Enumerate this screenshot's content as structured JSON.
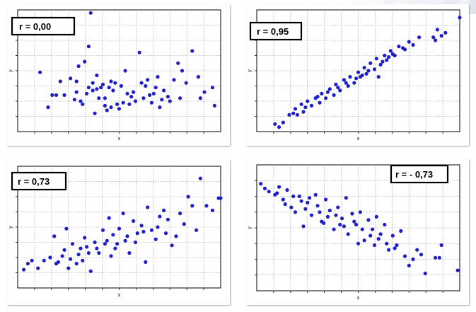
{
  "colors": {
    "marker": "#1f1fc8",
    "background": "#ffffff",
    "frame": "#000000"
  },
  "chart_data": [
    {
      "type": "scatter",
      "annotation": "r = 0,00",
      "xlabel": "x",
      "ylabel": "y",
      "xlim": [
        0,
        10
      ],
      "ylim": [
        0,
        8
      ],
      "grid": true,
      "series": [
        {
          "values": [
            [
              1.1,
              3.9
            ],
            [
              1.5,
              1.6
            ],
            [
              1.7,
              2.4
            ],
            [
              1.9,
              2.4
            ],
            [
              2.1,
              3.3
            ],
            [
              2.6,
              3.5
            ],
            [
              2.9,
              3.3
            ],
            [
              3.0,
              4.3
            ],
            [
              3.1,
              2.0
            ],
            [
              3.3,
              4.6
            ],
            [
              3.5,
              5.6
            ],
            [
              3.6,
              7.8
            ],
            [
              3.7,
              2.7
            ],
            [
              3.8,
              1.2
            ],
            [
              3.9,
              3.7
            ],
            [
              4.0,
              2.2
            ],
            [
              4.3,
              1.7
            ],
            [
              4.4,
              1.4
            ],
            [
              4.6,
              1.6
            ],
            [
              4.9,
              1.8
            ],
            [
              5.1,
              3.0
            ],
            [
              5.3,
              4.0
            ],
            [
              5.4,
              2.5
            ],
            [
              5.7,
              2.6
            ],
            [
              6.0,
              5.2
            ],
            [
              6.3,
              3.0
            ],
            [
              6.5,
              2.4
            ],
            [
              6.7,
              2.5
            ],
            [
              6.9,
              3.6
            ],
            [
              7.1,
              2.1
            ],
            [
              7.4,
              2.3
            ],
            [
              7.9,
              4.5
            ],
            [
              8.1,
              4.0
            ],
            [
              8.3,
              3.2
            ],
            [
              8.6,
              5.3
            ],
            [
              8.9,
              3.6
            ],
            [
              9.2,
              2.6
            ],
            [
              9.6,
              2.9
            ],
            [
              9.7,
              1.7
            ],
            [
              2.3,
              2.4
            ],
            [
              2.8,
              2.1
            ],
            [
              3.2,
              1.8
            ],
            [
              3.4,
              2.5
            ],
            [
              3.5,
              2.9
            ],
            [
              3.9,
              2.8
            ],
            [
              4.1,
              2.9
            ],
            [
              4.2,
              3.1
            ],
            [
              4.5,
              2.9
            ],
            [
              4.7,
              2.7
            ],
            [
              4.8,
              3.2
            ],
            [
              5.0,
              1.5
            ],
            [
              5.2,
              1.9
            ],
            [
              5.5,
              1.8
            ],
            [
              5.8,
              2.0
            ],
            [
              6.1,
              3.2
            ],
            [
              6.2,
              2.2
            ],
            [
              6.4,
              3.4
            ],
            [
              6.8,
              2.9
            ],
            [
              7.0,
              1.6
            ],
            [
              7.2,
              2.7
            ],
            [
              7.5,
              2.0
            ],
            [
              7.7,
              3.4
            ],
            [
              8.0,
              2.2
            ],
            [
              9.0,
              2.2
            ],
            [
              4.6,
              3.3
            ],
            [
              5.6,
              2.3
            ],
            [
              2.9,
              2.6
            ],
            [
              3.7,
              3.2
            ],
            [
              4.3,
              2.2
            ],
            [
              6.6,
              1.9
            ]
          ]
        }
      ]
    },
    {
      "type": "scatter",
      "annotation": "r = 0,95",
      "xlabel": "x",
      "ylabel": "y",
      "xlim": [
        0,
        10
      ],
      "ylim": [
        0,
        8
      ],
      "grid": true,
      "series": [
        {
          "values": [
            [
              0.9,
              0.5
            ],
            [
              1.1,
              0.3
            ],
            [
              1.3,
              0.6
            ],
            [
              1.6,
              1.1
            ],
            [
              1.9,
              1.5
            ],
            [
              2.0,
              1.1
            ],
            [
              2.2,
              1.8
            ],
            [
              2.3,
              1.3
            ],
            [
              2.5,
              2.0
            ],
            [
              2.7,
              1.7
            ],
            [
              2.9,
              2.2
            ],
            [
              3.1,
              1.9
            ],
            [
              3.2,
              2.5
            ],
            [
              3.4,
              2.2
            ],
            [
              3.6,
              2.8
            ],
            [
              3.8,
              2.4
            ],
            [
              3.9,
              3.1
            ],
            [
              4.1,
              2.7
            ],
            [
              4.3,
              3.4
            ],
            [
              4.5,
              3.0
            ],
            [
              4.6,
              3.6
            ],
            [
              4.8,
              3.2
            ],
            [
              5.0,
              3.9
            ],
            [
              5.1,
              3.6
            ],
            [
              5.3,
              4.2
            ],
            [
              5.4,
              3.8
            ],
            [
              5.6,
              4.5
            ],
            [
              5.8,
              4.1
            ],
            [
              5.9,
              4.8
            ],
            [
              6.1,
              4.4
            ],
            [
              6.3,
              5.0
            ],
            [
              6.4,
              4.7
            ],
            [
              6.6,
              5.3
            ],
            [
              6.8,
              5.0
            ],
            [
              7.0,
              5.6
            ],
            [
              7.3,
              5.4
            ],
            [
              7.5,
              5.9
            ],
            [
              7.7,
              5.7
            ],
            [
              8.0,
              6.2
            ],
            [
              8.7,
              6.2
            ],
            [
              8.9,
              6.7
            ],
            [
              9.1,
              6.3
            ],
            [
              9.3,
              6.5
            ],
            [
              10.0,
              7.5
            ],
            [
              6.0,
              3.6
            ],
            [
              3.0,
              2.3
            ],
            [
              2.4,
              1.6
            ],
            [
              4.0,
              2.9
            ],
            [
              4.4,
              3.2
            ],
            [
              4.9,
              3.5
            ],
            [
              5.5,
              4.0
            ],
            [
              6.2,
              4.6
            ],
            [
              6.7,
              5.1
            ],
            [
              7.2,
              5.5
            ],
            [
              1.8,
              1.2
            ],
            [
              3.5,
              2.6
            ],
            [
              5.2,
              3.7
            ],
            [
              6.5,
              4.9
            ],
            [
              8.8,
              6.0
            ]
          ]
        }
      ]
    },
    {
      "type": "scatter",
      "annotation": "r = 0,73",
      "xlabel": "x",
      "ylabel": "y",
      "xlim": [
        0,
        10
      ],
      "ylim": [
        0,
        8
      ],
      "grid": true,
      "series": [
        {
          "values": [
            [
              0.3,
              1.2
            ],
            [
              0.5,
              1.6
            ],
            [
              0.7,
              1.8
            ],
            [
              1.0,
              1.3
            ],
            [
              1.3,
              1.8
            ],
            [
              1.6,
              2.0
            ],
            [
              1.8,
              3.4
            ],
            [
              2.0,
              1.7
            ],
            [
              2.2,
              2.1
            ],
            [
              2.4,
              3.9
            ],
            [
              2.5,
              1.3
            ],
            [
              2.7,
              2.9
            ],
            [
              2.9,
              1.6
            ],
            [
              3.1,
              2.6
            ],
            [
              3.3,
              3.3
            ],
            [
              3.5,
              2.3
            ],
            [
              3.6,
              1.1
            ],
            [
              3.8,
              3.0
            ],
            [
              4.0,
              2.3
            ],
            [
              4.2,
              3.8
            ],
            [
              4.3,
              2.9
            ],
            [
              4.5,
              4.6
            ],
            [
              4.7,
              3.5
            ],
            [
              4.8,
              2.6
            ],
            [
              5.0,
              3.9
            ],
            [
              5.2,
              4.9
            ],
            [
              5.3,
              3.1
            ],
            [
              5.5,
              2.3
            ],
            [
              5.7,
              4.4
            ],
            [
              5.9,
              3.6
            ],
            [
              6.1,
              4.1
            ],
            [
              6.3,
              1.7
            ],
            [
              6.4,
              5.3
            ],
            [
              6.6,
              3.8
            ],
            [
              6.8,
              3.2
            ],
            [
              7.0,
              4.7
            ],
            [
              7.2,
              5.1
            ],
            [
              7.4,
              4.5
            ],
            [
              7.6,
              2.8
            ],
            [
              7.8,
              3.4
            ],
            [
              8.0,
              4.9
            ],
            [
              8.2,
              4.2
            ],
            [
              8.4,
              6.0
            ],
            [
              8.6,
              5.4
            ],
            [
              8.8,
              3.8
            ],
            [
              9.0,
              7.2
            ],
            [
              9.3,
              5.4
            ],
            [
              9.6,
              5.1
            ],
            [
              9.9,
              5.9
            ],
            [
              10.0,
              5.9
            ],
            [
              1.9,
              1.6
            ],
            [
              2.6,
              1.9
            ],
            [
              3.0,
              2.2
            ],
            [
              3.4,
              2.7
            ],
            [
              3.9,
              2.6
            ],
            [
              4.4,
              3.1
            ],
            [
              4.9,
              2.9
            ],
            [
              5.4,
              3.4
            ],
            [
              5.8,
              3.0
            ],
            [
              6.2,
              3.7
            ],
            [
              6.9,
              4.0
            ],
            [
              7.3,
              3.6
            ],
            [
              4.6,
              2.1
            ],
            [
              3.2,
              1.8
            ],
            [
              2.3,
              2.5
            ]
          ]
        }
      ]
    },
    {
      "type": "scatter",
      "annotation": "r = - 0,73",
      "xlabel": "x",
      "ylabel": "y",
      "xlim": [
        0,
        10
      ],
      "ylim": [
        0,
        8
      ],
      "grid": true,
      "series": [
        {
          "values": [
            [
              0.2,
              6.8
            ],
            [
              0.4,
              6.5
            ],
            [
              0.6,
              6.3
            ],
            [
              0.9,
              6.1
            ],
            [
              1.1,
              6.6
            ],
            [
              1.3,
              5.8
            ],
            [
              1.5,
              6.4
            ],
            [
              1.7,
              5.3
            ],
            [
              1.9,
              5.0
            ],
            [
              2.1,
              6.0
            ],
            [
              2.3,
              4.1
            ],
            [
              2.5,
              5.6
            ],
            [
              2.7,
              4.8
            ],
            [
              2.9,
              6.1
            ],
            [
              3.0,
              5.4
            ],
            [
              3.2,
              4.4
            ],
            [
              3.4,
              5.8
            ],
            [
              3.6,
              5.1
            ],
            [
              3.8,
              3.9
            ],
            [
              4.0,
              5.3
            ],
            [
              4.2,
              4.6
            ],
            [
              4.4,
              5.9
            ],
            [
              4.5,
              3.6
            ],
            [
              4.7,
              4.9
            ],
            [
              4.9,
              4.2
            ],
            [
              5.1,
              5.0
            ],
            [
              5.3,
              3.2
            ],
            [
              5.5,
              4.5
            ],
            [
              5.7,
              3.9
            ],
            [
              5.9,
              4.7
            ],
            [
              6.1,
              3.6
            ],
            [
              6.3,
              4.2
            ],
            [
              6.5,
              2.6
            ],
            [
              6.7,
              3.5
            ],
            [
              6.9,
              2.9
            ],
            [
              7.1,
              3.8
            ],
            [
              7.3,
              2.2
            ],
            [
              7.5,
              1.6
            ],
            [
              7.7,
              2.0
            ],
            [
              7.9,
              2.6
            ],
            [
              8.1,
              2.3
            ],
            [
              8.3,
              1.1
            ],
            [
              8.8,
              2.1
            ],
            [
              9.0,
              2.1
            ],
            [
              9.1,
              2.9
            ],
            [
              9.9,
              1.3
            ],
            [
              1.8,
              6.0
            ],
            [
              2.2,
              5.7
            ],
            [
              2.6,
              5.9
            ],
            [
              3.1,
              5.0
            ],
            [
              3.5,
              4.7
            ],
            [
              3.9,
              4.8
            ],
            [
              4.3,
              4.1
            ],
            [
              4.8,
              4.4
            ],
            [
              5.2,
              3.9
            ],
            [
              5.6,
              3.5
            ],
            [
              6.0,
              3.3
            ],
            [
              6.4,
              3.0
            ],
            [
              6.8,
              2.7
            ],
            [
              1.0,
              6.2
            ],
            [
              1.4,
              5.5
            ],
            [
              2.4,
              5.2
            ],
            [
              3.3,
              4.3
            ],
            [
              4.1,
              4.2
            ],
            [
              5.0,
              3.0
            ],
            [
              5.8,
              2.9
            ]
          ]
        }
      ]
    }
  ]
}
